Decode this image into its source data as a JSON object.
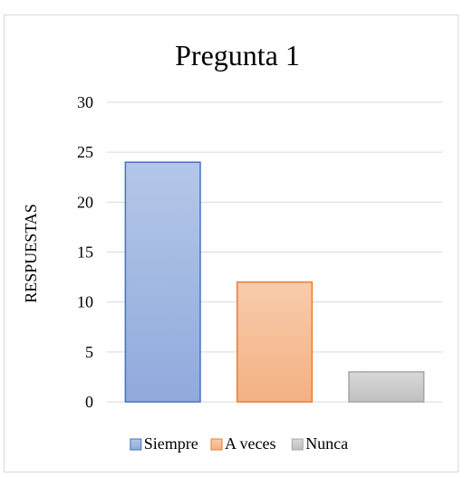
{
  "chart_data": {
    "type": "bar",
    "title": "Pregunta 1",
    "xlabel": "",
    "ylabel": "RESPUESTAS",
    "ylim": [
      0,
      30
    ],
    "yticks": [
      0,
      5,
      10,
      15,
      20,
      25,
      30
    ],
    "grid": true,
    "legend_position": "bottom",
    "series": [
      {
        "name": "Siempre",
        "value": 24,
        "color": "#8faadc",
        "stroke": "#4472c4",
        "gradient_top": "#b4c7e7"
      },
      {
        "name": "A veces",
        "value": 12,
        "color": "#f4b183",
        "stroke": "#ed7d31",
        "gradient_top": "#f8cbad"
      },
      {
        "name": "Nunca",
        "value": 3,
        "color": "#bfbfbf",
        "stroke": "#a5a5a5",
        "gradient_top": "#d9d9d9"
      }
    ]
  }
}
